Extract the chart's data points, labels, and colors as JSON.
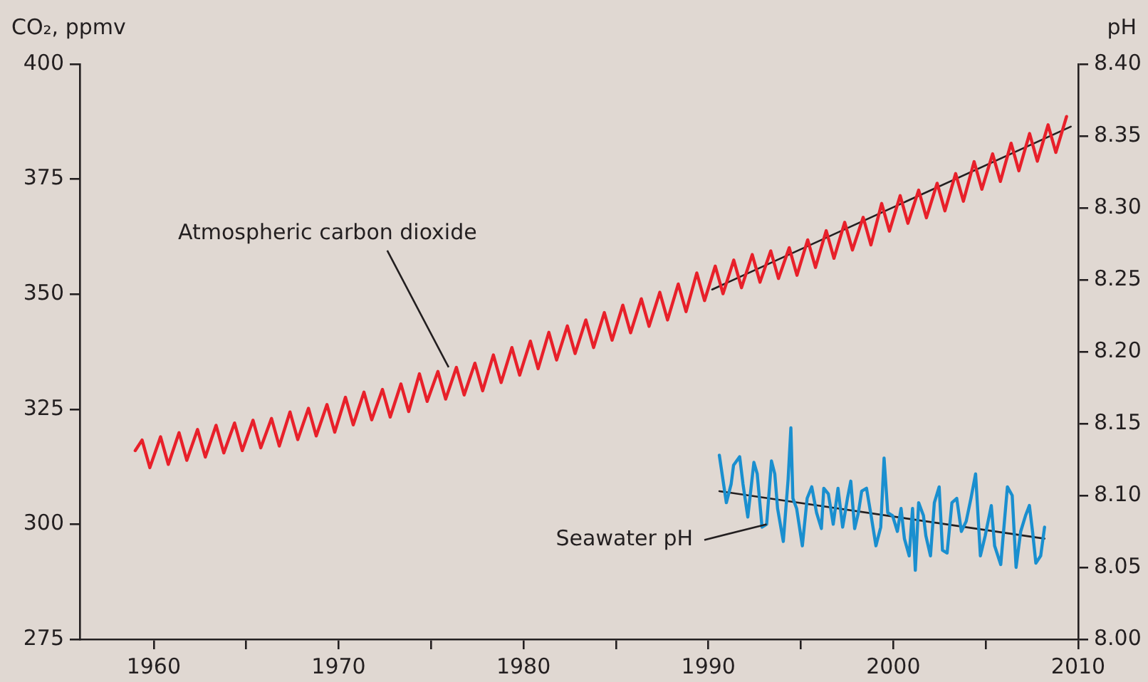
{
  "chart_data": {
    "type": "line",
    "ylabel": "CO₂, ppmv",
    "y2label": "pH",
    "xlim": [
      1956,
      2010
    ],
    "xticks": [
      1960,
      {
        "value": 1965,
        "label": null
      },
      1970,
      {
        "value": 1975,
        "label": null
      },
      1980,
      {
        "value": 1985,
        "label": null
      },
      1990,
      {
        "value": 1995,
        "label": null
      },
      2000,
      {
        "value": 2005,
        "label": null
      },
      2010
    ],
    "ylim": [
      275,
      400
    ],
    "yticks": [
      275,
      300,
      325,
      350,
      375,
      400
    ],
    "y2lim": [
      8.0,
      8.4
    ],
    "y2ticks": [
      {
        "value": 8.0,
        "label": "8.00"
      },
      {
        "value": 8.05,
        "label": "8.05"
      },
      {
        "value": 8.1,
        "label": "8.10"
      },
      {
        "value": 8.15,
        "label": "8.15"
      },
      {
        "value": 8.2,
        "label": "8.20"
      },
      {
        "value": 8.25,
        "label": "8.25"
      },
      {
        "value": 8.3,
        "label": "8.30"
      },
      {
        "value": 8.35,
        "label": "8.35"
      },
      {
        "value": 8.4,
        "label": "8.40"
      }
    ],
    "grid": false,
    "legend": false,
    "marker": "none",
    "line_style": "solid",
    "series": [
      {
        "color": "#e8202a",
        "axis": "y",
        "x": [
          1959.0,
          1959.37,
          1959.79,
          1960.37,
          1960.79,
          1961.37,
          1961.79,
          1962.37,
          1962.79,
          1963.37,
          1963.79,
          1964.37,
          1964.79,
          1965.37,
          1965.79,
          1966.37,
          1966.79,
          1967.37,
          1967.79,
          1968.37,
          1968.79,
          1969.37,
          1969.79,
          1970.37,
          1970.79,
          1971.37,
          1971.79,
          1972.37,
          1972.79,
          1973.37,
          1973.79,
          1974.37,
          1974.79,
          1975.37,
          1975.79,
          1976.37,
          1976.79,
          1977.37,
          1977.79,
          1978.37,
          1978.79,
          1979.37,
          1979.79,
          1980.37,
          1980.79,
          1981.37,
          1981.79,
          1982.37,
          1982.79,
          1983.37,
          1983.79,
          1984.37,
          1984.79,
          1985.37,
          1985.79,
          1986.37,
          1986.79,
          1987.37,
          1987.79,
          1988.37,
          1988.79,
          1989.37,
          1989.79,
          1990.37,
          1990.79,
          1991.37,
          1991.79,
          1992.37,
          1992.79,
          1993.37,
          1993.79,
          1994.37,
          1994.79,
          1995.37,
          1995.79,
          1996.37,
          1996.79,
          1997.37,
          1997.79,
          1998.37,
          1998.79,
          1999.37,
          1999.79,
          2000.37,
          2000.79,
          2001.37,
          2001.79,
          2002.37,
          2002.79,
          2003.37,
          2003.79,
          2004.37,
          2004.79,
          2005.37,
          2005.79,
          2006.37,
          2006.79,
          2007.37,
          2007.79,
          2008.37,
          2008.79,
          2009.37
        ],
        "values": [
          316.0,
          318.3,
          312.3,
          319.0,
          313.0,
          319.9,
          313.9,
          320.6,
          314.6,
          321.5,
          315.5,
          322.0,
          316.0,
          322.6,
          316.6,
          323.0,
          317.0,
          324.4,
          318.4,
          325.2,
          319.2,
          326.0,
          320.0,
          327.6,
          321.6,
          328.7,
          322.7,
          329.3,
          323.3,
          330.5,
          324.5,
          332.7,
          326.7,
          333.2,
          327.2,
          334.1,
          328.1,
          335.0,
          329.0,
          336.8,
          330.8,
          338.4,
          332.4,
          339.8,
          333.8,
          341.7,
          335.7,
          343.1,
          337.1,
          344.4,
          338.4,
          346.0,
          340.0,
          347.6,
          341.6,
          349.0,
          343.0,
          350.4,
          344.4,
          352.2,
          346.2,
          354.6,
          348.6,
          356.1,
          350.1,
          357.4,
          351.4,
          358.6,
          352.6,
          359.4,
          353.4,
          360.1,
          354.1,
          361.8,
          355.8,
          363.8,
          357.8,
          365.6,
          359.6,
          366.7,
          360.7,
          369.7,
          363.7,
          371.4,
          365.4,
          372.6,
          366.6,
          374.1,
          368.1,
          376.2,
          370.2,
          378.8,
          372.8,
          380.5,
          374.5,
          382.8,
          376.8,
          384.9,
          378.9,
          386.8,
          380.8,
          388.6
        ]
      },
      {
        "color": "#231f20",
        "axis": "y",
        "x": [
          1990.2,
          2009.6
        ],
        "values": [
          351.0,
          386.4
        ]
      },
      {
        "color": "#1a8fcf",
        "axis": "y2",
        "x": [
          1990.59,
          1990.97,
          1991.23,
          1991.36,
          1991.69,
          1991.87,
          1992.13,
          1992.46,
          1992.64,
          1992.9,
          1993.15,
          1993.41,
          1993.59,
          1993.74,
          1994.05,
          1994.31,
          1994.46,
          1994.57,
          1994.77,
          1995.08,
          1995.34,
          1995.59,
          1995.85,
          1996.11,
          1996.24,
          1996.49,
          1996.75,
          1997.01,
          1997.26,
          1997.52,
          1997.7,
          1997.91,
          1998.11,
          1998.29,
          1998.55,
          1998.8,
          1999.06,
          1999.32,
          1999.5,
          1999.7,
          1999.96,
          2000.22,
          2000.42,
          2000.6,
          2000.86,
          2001.04,
          2001.19,
          2001.37,
          2001.63,
          2001.76,
          2002.01,
          2002.22,
          2002.48,
          2002.66,
          2002.91,
          2003.17,
          2003.43,
          2003.68,
          2003.94,
          2004.2,
          2004.45,
          2004.71,
          2004.97,
          2005.3,
          2005.48,
          2005.81,
          2006.17,
          2006.43,
          2006.64,
          2006.89,
          2007.15,
          2007.36,
          2007.53,
          2007.71,
          2007.97,
          2008.18
        ],
        "values": [
          8.128,
          8.095,
          8.108,
          8.121,
          8.127,
          8.108,
          8.085,
          8.123,
          8.115,
          8.078,
          8.08,
          8.124,
          8.115,
          8.091,
          8.068,
          8.111,
          8.147,
          8.098,
          8.091,
          8.065,
          8.098,
          8.106,
          8.088,
          8.077,
          8.105,
          8.101,
          8.08,
          8.105,
          8.078,
          8.098,
          8.11,
          8.077,
          8.088,
          8.103,
          8.105,
          8.086,
          8.065,
          8.078,
          8.126,
          8.088,
          8.086,
          8.075,
          8.091,
          8.07,
          8.058,
          8.091,
          8.048,
          8.095,
          8.086,
          8.072,
          8.058,
          8.095,
          8.106,
          8.062,
          8.06,
          8.095,
          8.098,
          8.075,
          8.082,
          8.098,
          8.115,
          8.058,
          8.072,
          8.093,
          8.065,
          8.052,
          8.106,
          8.1,
          8.05,
          8.075,
          8.086,
          8.093,
          8.075,
          8.053,
          8.058,
          8.078
        ]
      },
      {
        "color": "#231f20",
        "axis": "y2",
        "x": [
          1990.59,
          2008.18
        ],
        "values": [
          8.103,
          8.07
        ]
      }
    ],
    "annotations": [
      {
        "text": "Atmospheric carbon dioxide",
        "x": 1975.95,
        "y": 334.1
      },
      {
        "text": "Seawater pH",
        "x": 1993.15,
        "y": 300
      }
    ]
  }
}
